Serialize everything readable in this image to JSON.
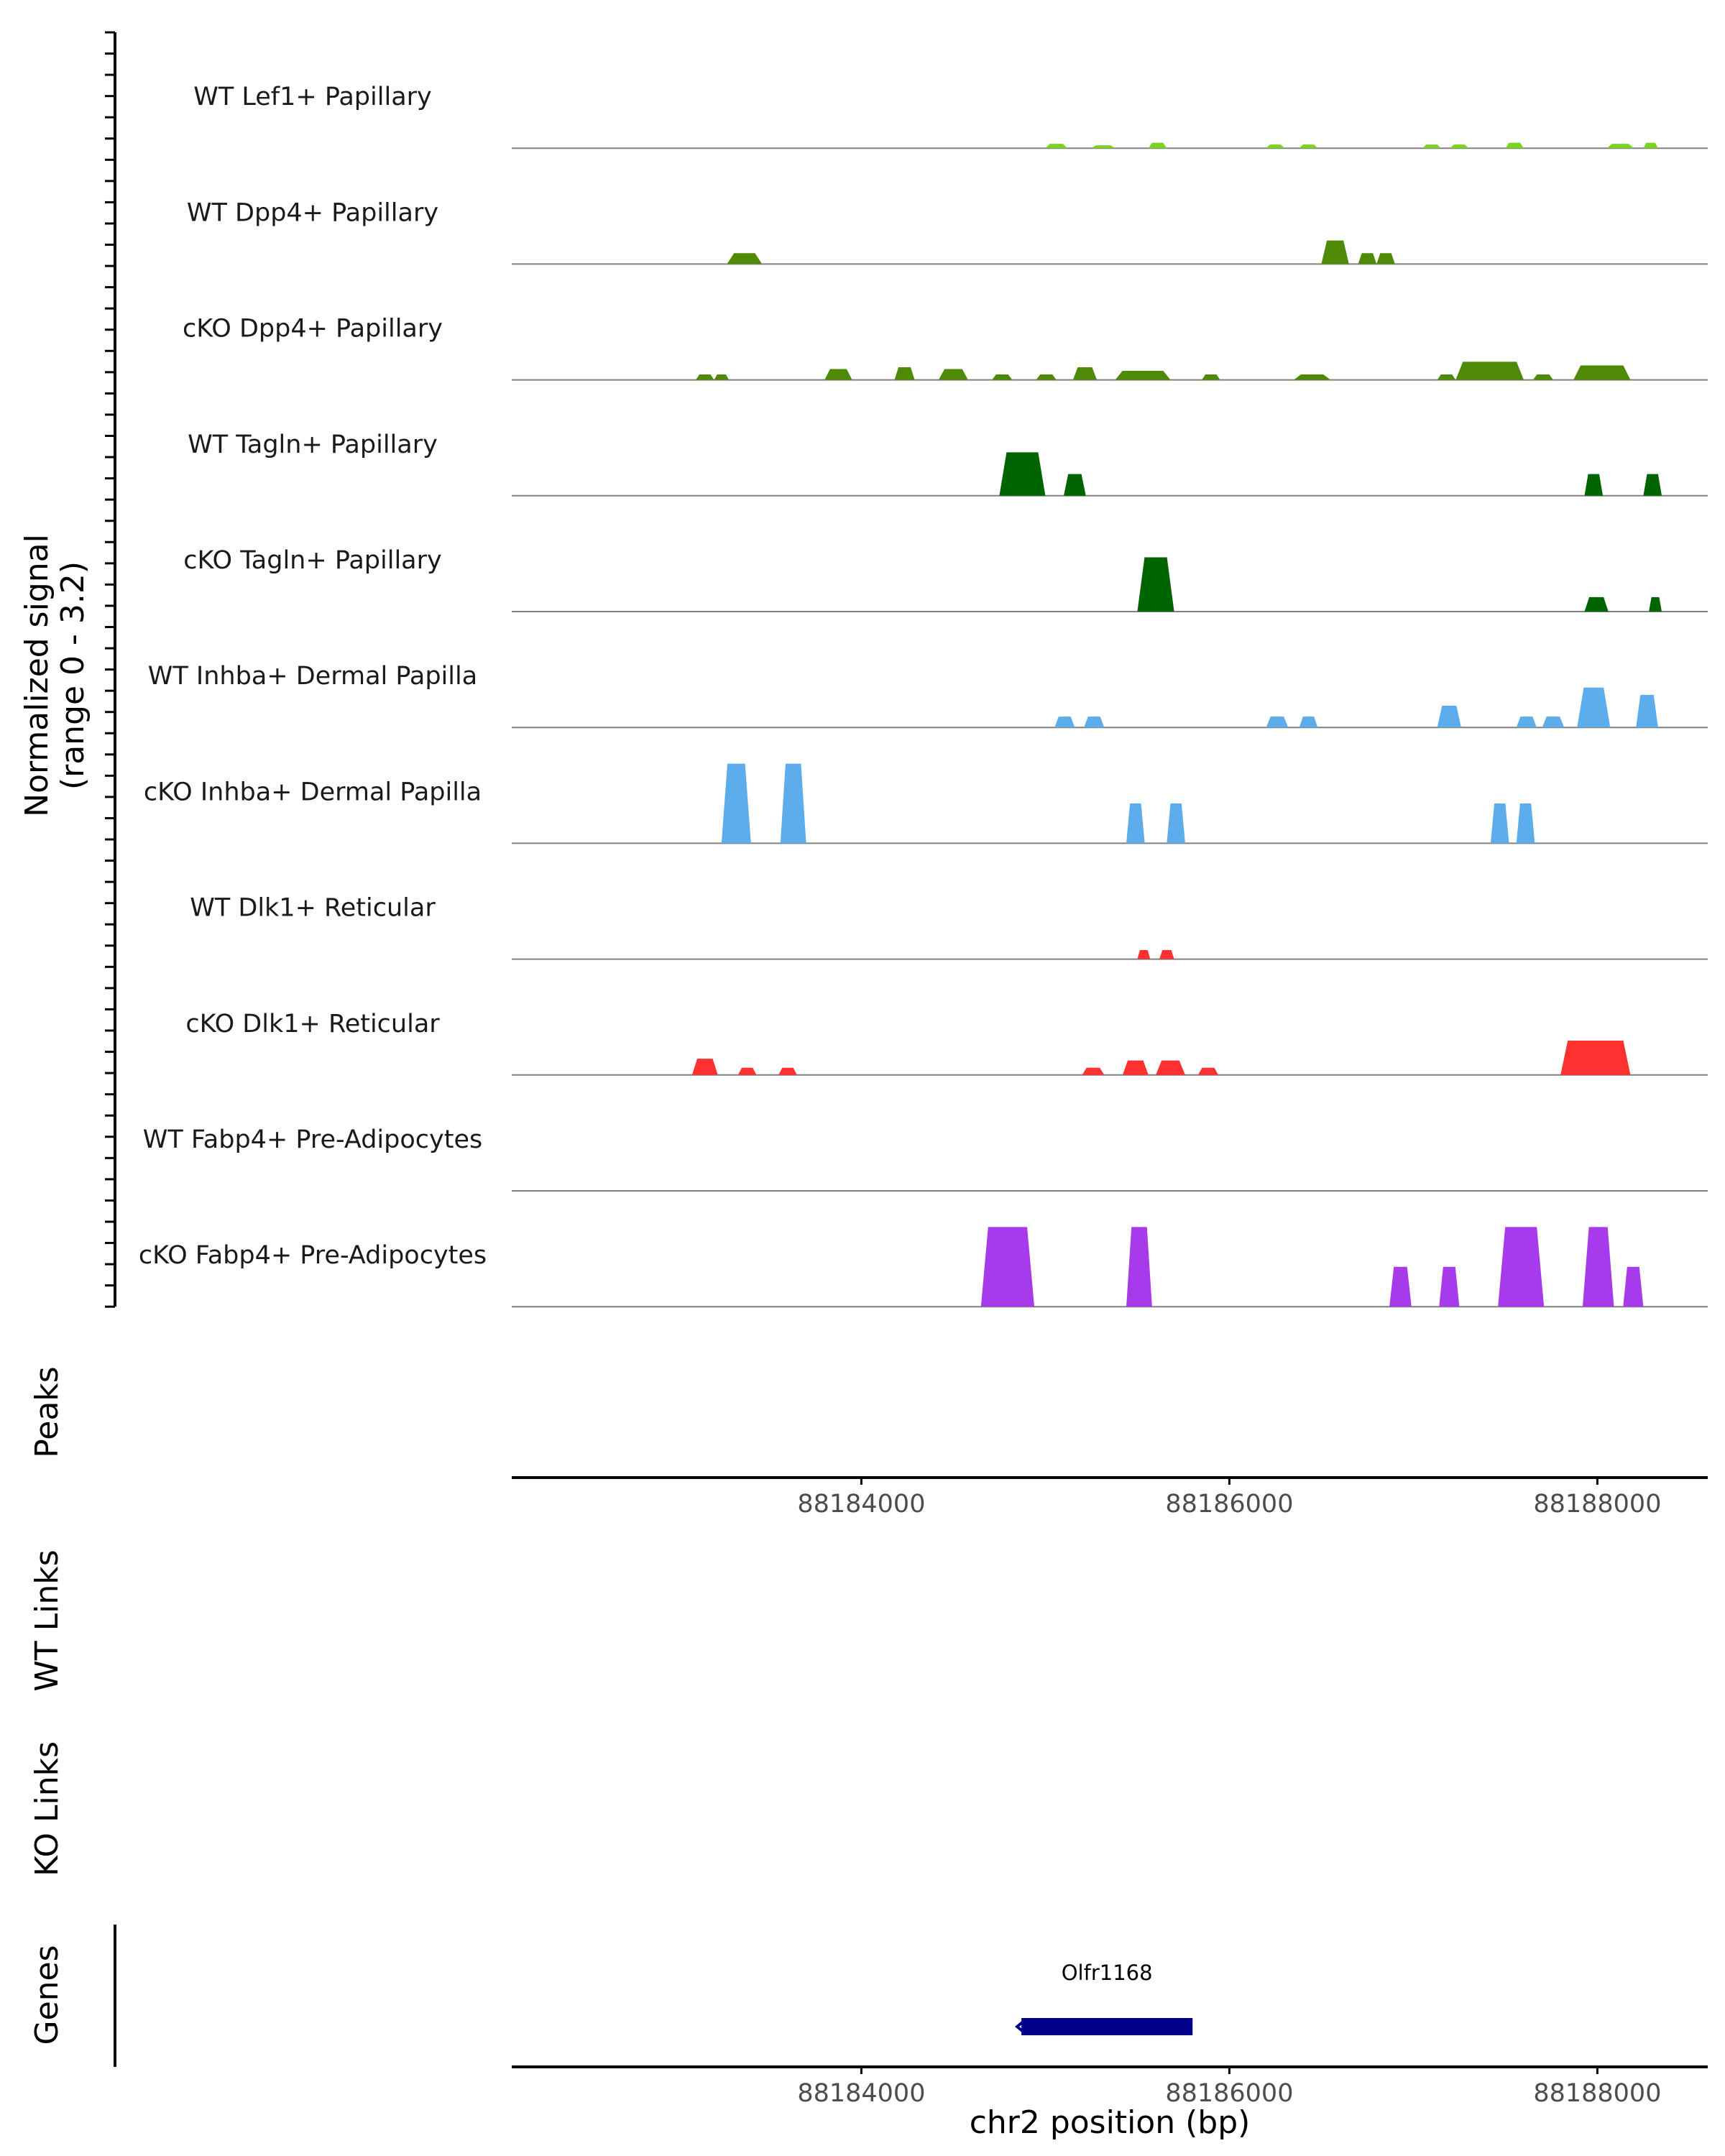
{
  "chart_data": {
    "type": "area",
    "title": "",
    "region": {
      "chrom": "chr2",
      "start": 88182100,
      "end": 88188600
    },
    "signal_axis": {
      "label_line1": "Normalized signal",
      "label_line2": "(range 0 - 3.2)",
      "range": [
        0,
        3.2
      ]
    },
    "tracks": [
      {
        "name": "WT Lef1+ Papillary",
        "color": "#7CD321",
        "peaks": [
          [
            88185000,
            88185120,
            0.12
          ],
          [
            88185250,
            88185380,
            0.08
          ],
          [
            88185560,
            88185660,
            0.15
          ],
          [
            88186200,
            88186300,
            0.1
          ],
          [
            88186380,
            88186480,
            0.1
          ],
          [
            88187050,
            88187150,
            0.1
          ],
          [
            88187200,
            88187300,
            0.1
          ],
          [
            88187500,
            88187600,
            0.15
          ],
          [
            88188050,
            88188200,
            0.12
          ],
          [
            88188250,
            88188330,
            0.15
          ]
        ]
      },
      {
        "name": "WT Dpp4+ Papillary",
        "color": "#4E8A06",
        "peaks": [
          [
            88183270,
            88183460,
            0.3
          ],
          [
            88186500,
            88186650,
            0.65
          ],
          [
            88186700,
            88186800,
            0.3
          ],
          [
            88186800,
            88186900,
            0.3
          ]
        ]
      },
      {
        "name": "cKO Dpp4+ Papillary",
        "color": "#4E8A06",
        "peaks": [
          [
            88183100,
            88183200,
            0.15
          ],
          [
            88183200,
            88183280,
            0.15
          ],
          [
            88183800,
            88183950,
            0.3
          ],
          [
            88184180,
            88184290,
            0.35
          ],
          [
            88184420,
            88184580,
            0.3
          ],
          [
            88184710,
            88184820,
            0.15
          ],
          [
            88184950,
            88185060,
            0.15
          ],
          [
            88185150,
            88185280,
            0.35
          ],
          [
            88185380,
            88185680,
            0.25
          ],
          [
            88185850,
            88185950,
            0.15
          ],
          [
            88186350,
            88186550,
            0.15
          ],
          [
            88187130,
            88187230,
            0.15
          ],
          [
            88187230,
            88187600,
            0.5
          ],
          [
            88187650,
            88187760,
            0.15
          ],
          [
            88187870,
            88188180,
            0.4
          ]
        ]
      },
      {
        "name": "WT Tagln+ Papillary",
        "color": "#006400",
        "peaks": [
          [
            88184750,
            88185000,
            1.2
          ],
          [
            88185100,
            88185220,
            0.6
          ],
          [
            88187930,
            88188030,
            0.6
          ],
          [
            88188250,
            88188350,
            0.6
          ]
        ]
      },
      {
        "name": "cKO Tagln+ Papillary",
        "color": "#006400",
        "peaks": [
          [
            88185500,
            88185700,
            1.5
          ],
          [
            88187930,
            88188060,
            0.4
          ],
          [
            88188280,
            88188350,
            0.4
          ]
        ]
      },
      {
        "name": "WT Inhba+ Dermal Papilla",
        "color": "#5DADEC",
        "peaks": [
          [
            88185050,
            88185160,
            0.3
          ],
          [
            88185210,
            88185320,
            0.3
          ],
          [
            88186200,
            88186320,
            0.3
          ],
          [
            88186380,
            88186480,
            0.3
          ],
          [
            88187130,
            88187260,
            0.6
          ],
          [
            88187560,
            88187670,
            0.3
          ],
          [
            88187700,
            88187820,
            0.3
          ],
          [
            88187890,
            88188070,
            1.1
          ],
          [
            88188210,
            88188330,
            0.9
          ]
        ]
      },
      {
        "name": "cKO Inhba+ Dermal Papilla",
        "color": "#5DADEC",
        "peaks": [
          [
            88183240,
            88183400,
            2.2
          ],
          [
            88183560,
            88183700,
            2.2
          ],
          [
            88185440,
            88185540,
            1.1
          ],
          [
            88185660,
            88185760,
            1.1
          ],
          [
            88187420,
            88187520,
            1.1
          ],
          [
            88187560,
            88187660,
            1.1
          ]
        ]
      },
      {
        "name": "WT Dlk1+ Reticular",
        "color": "#FF3030",
        "peaks": [
          [
            88185500,
            88185570,
            0.25
          ],
          [
            88185620,
            88185700,
            0.25
          ]
        ]
      },
      {
        "name": "cKO Dlk1+ Reticular",
        "color": "#FF3030",
        "peaks": [
          [
            88183080,
            88183220,
            0.45
          ],
          [
            88183330,
            88183430,
            0.2
          ],
          [
            88183550,
            88183650,
            0.2
          ],
          [
            88185200,
            88185320,
            0.2
          ],
          [
            88185420,
            88185560,
            0.4
          ],
          [
            88185600,
            88185760,
            0.4
          ],
          [
            88185830,
            88185940,
            0.2
          ],
          [
            88187800,
            88188180,
            0.95
          ]
        ]
      },
      {
        "name": "WT Fabp4+ Pre-Adipocytes",
        "color": "#A73AEB",
        "peaks": []
      },
      {
        "name": "cKO Fabp4+ Pre-Adipocytes",
        "color": "#A73AEB",
        "peaks": [
          [
            88184650,
            88184940,
            2.2
          ],
          [
            88185440,
            88185580,
            2.2
          ],
          [
            88186870,
            88186990,
            1.1
          ],
          [
            88187140,
            88187250,
            1.1
          ],
          [
            88187460,
            88187710,
            2.2
          ],
          [
            88187920,
            88188090,
            2.2
          ],
          [
            88188140,
            88188250,
            1.1
          ]
        ]
      }
    ],
    "panels": {
      "peaks_label": "Peaks",
      "wt_links_label": "WT Links",
      "ko_links_label": "KO Links",
      "genes_label": "Genes"
    },
    "x_axis": {
      "ticks": [
        88184000,
        88186000,
        88188000
      ],
      "tick_labels": [
        "88184000",
        "88186000",
        "88188000"
      ],
      "label": "chr2 position (bp)"
    },
    "genes": [
      {
        "name": "Olfr1168",
        "start": 88184870,
        "end": 88185800,
        "strand": "-",
        "color": "#00008B"
      }
    ],
    "colors": {
      "axis": "#000000",
      "baseline": "#808080",
      "tick_text": "#4D4D4D"
    }
  }
}
